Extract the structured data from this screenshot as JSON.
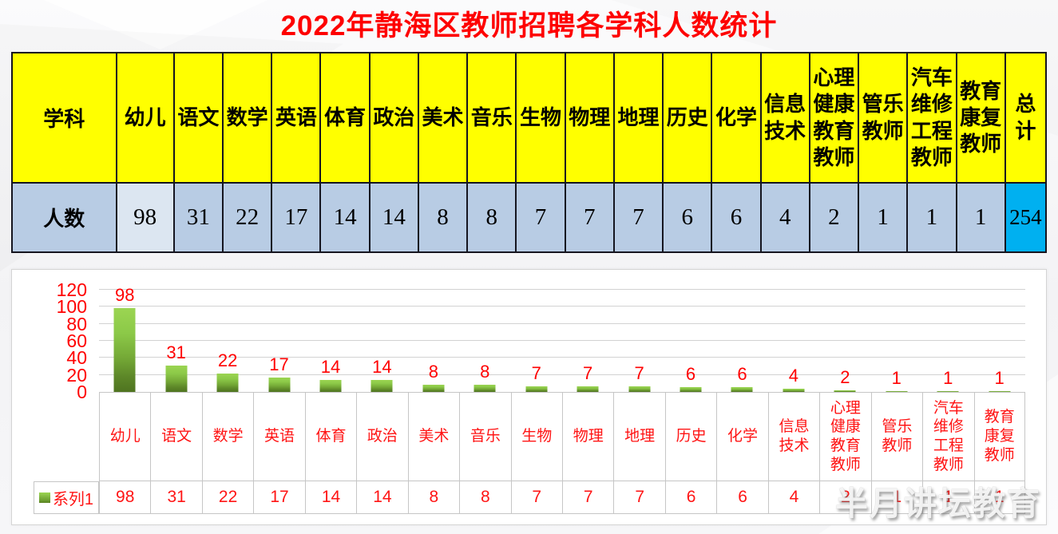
{
  "title": "2022年静海区教师招聘各学科人数统计",
  "table": {
    "header_label": "学科",
    "row_label": "人数",
    "columns": [
      "幼儿",
      "语文",
      "数学",
      "英语",
      "体育",
      "政治",
      "美术",
      "音乐",
      "生物",
      "物理",
      "地理",
      "历史",
      "化学",
      "信息技术",
      "心理健康教育教师",
      "管乐教师",
      "汽车维修工程教师",
      "教育康复教师"
    ],
    "values": [
      98,
      31,
      22,
      17,
      14,
      14,
      8,
      8,
      7,
      7,
      7,
      6,
      6,
      4,
      2,
      1,
      1,
      1
    ],
    "total_label": "总计",
    "total_value": 254
  },
  "chart_data": {
    "type": "bar",
    "title": "",
    "categories": [
      "幼儿",
      "语文",
      "数学",
      "英语",
      "体育",
      "政治",
      "美术",
      "音乐",
      "生物",
      "物理",
      "地理",
      "历史",
      "化学",
      "信息技术",
      "心理健康教育教师",
      "管乐教师",
      "汽车维修工程教师",
      "教育康复教师"
    ],
    "series": [
      {
        "name": "系列1",
        "values": [
          98,
          31,
          22,
          17,
          14,
          14,
          8,
          8,
          7,
          7,
          7,
          6,
          6,
          4,
          2,
          1,
          1,
          1
        ]
      }
    ],
    "xlabel": "",
    "ylabel": "",
    "ylim": [
      0,
      120
    ],
    "yticks": [
      0,
      20,
      40,
      60,
      80,
      100,
      120
    ],
    "grid": true,
    "legend_position": "bottom-left",
    "data_labels": true
  },
  "watermark": "半月讲坛教育",
  "colors": {
    "title_text": "#fe0000",
    "chart_text": "#ff0000",
    "header_bg": "#ffff00",
    "data_row_bg": "#b8cce4",
    "first_data_cell_bg": "#dce6f1",
    "total_cell_bg": "#00b0f0",
    "table_border": "#15151f",
    "bar_top": "#9bd552",
    "bar_bottom": "#4f7420",
    "gridline": "#d2d2d2"
  }
}
